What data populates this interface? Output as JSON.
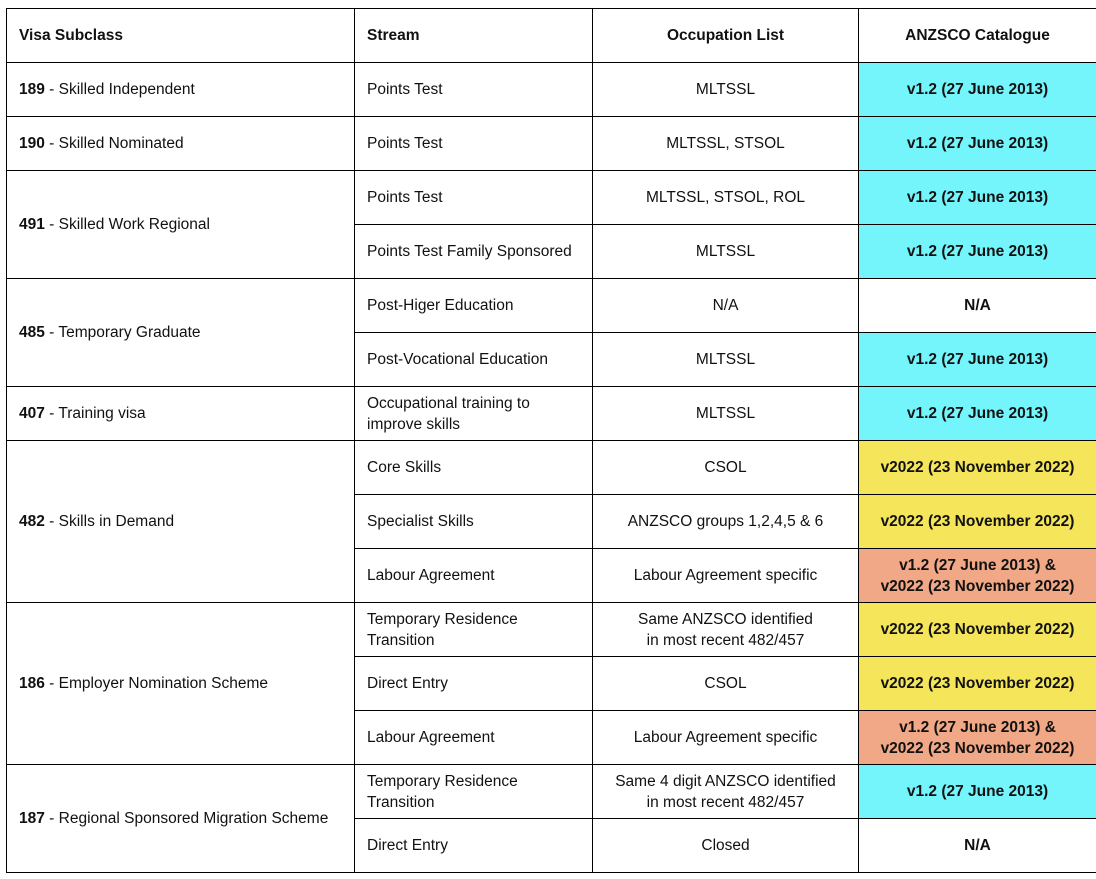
{
  "colors": {
    "cyan": "#74f5fb",
    "yellow": "#f4e55a",
    "orange": "#f1a886",
    "none": "#ffffff"
  },
  "headers": {
    "subclass": "Visa Subclass",
    "stream": "Stream",
    "occupation": "Occupation List",
    "catalogue": "ANZSCO Catalogue"
  },
  "groups": [
    {
      "number": "189",
      "label": " - Skilled Independent",
      "rows": [
        {
          "stream": [
            "Points Test"
          ],
          "occupation": [
            "MLTSSL"
          ],
          "catalogue": [
            "v1.2 (27 June 2013)"
          ],
          "color": "cyan"
        }
      ]
    },
    {
      "number": "190",
      "label": " - Skilled Nominated",
      "rows": [
        {
          "stream": [
            "Points Test"
          ],
          "occupation": [
            "MLTSSL, STSOL"
          ],
          "catalogue": [
            "v1.2 (27 June 2013)"
          ],
          "color": "cyan"
        }
      ]
    },
    {
      "number": "491",
      "label": " - Skilled Work Regional",
      "rows": [
        {
          "stream": [
            "Points Test"
          ],
          "occupation": [
            "MLTSSL, STSOL, ROL"
          ],
          "catalogue": [
            "v1.2 (27 June 2013)"
          ],
          "color": "cyan"
        },
        {
          "stream": [
            "Points Test Family Sponsored"
          ],
          "occupation": [
            "MLTSSL"
          ],
          "catalogue": [
            "v1.2 (27 June 2013)"
          ],
          "color": "cyan"
        }
      ]
    },
    {
      "number": "485",
      "label": " - Temporary Graduate",
      "rows": [
        {
          "stream": [
            "Post-Higer Education"
          ],
          "occupation": [
            "N/A"
          ],
          "catalogue": [
            "N/A"
          ],
          "color": "none"
        },
        {
          "stream": [
            "Post-Vocational Education"
          ],
          "occupation": [
            "MLTSSL"
          ],
          "catalogue": [
            "v1.2 (27 June 2013)"
          ],
          "color": "cyan"
        }
      ]
    },
    {
      "number": "407",
      "label": " - Training visa",
      "rows": [
        {
          "stream": [
            "Occupational training to",
            "improve skills"
          ],
          "occupation": [
            "MLTSSL"
          ],
          "catalogue": [
            "v1.2 (27 June 2013)"
          ],
          "color": "cyan"
        }
      ]
    },
    {
      "number": "482",
      "label": " - Skills in Demand",
      "rows": [
        {
          "stream": [
            "Core Skills"
          ],
          "occupation": [
            "CSOL"
          ],
          "catalogue": [
            "v2022 (23 November 2022)"
          ],
          "color": "yellow"
        },
        {
          "stream": [
            "Specialist Skills"
          ],
          "occupation": [
            "ANZSCO groups 1,2,4,5 & 6"
          ],
          "catalogue": [
            "v2022 (23 November 2022)"
          ],
          "color": "yellow"
        },
        {
          "stream": [
            "Labour Agreement"
          ],
          "occupation": [
            "Labour Agreement specific"
          ],
          "catalogue": [
            "v1.2 (27 June 2013) &",
            "v2022 (23 November 2022)"
          ],
          "color": "orange"
        }
      ]
    },
    {
      "number": "186",
      "label": " - Employer Nomination Scheme",
      "rows": [
        {
          "stream": [
            "Temporary Residence",
            "Transition"
          ],
          "occupation": [
            "Same ANZSCO identified",
            "in most recent 482/457"
          ],
          "catalogue": [
            "v2022 (23 November 2022)"
          ],
          "color": "yellow"
        },
        {
          "stream": [
            "Direct Entry"
          ],
          "occupation": [
            "CSOL"
          ],
          "catalogue": [
            "v2022 (23 November 2022)"
          ],
          "color": "yellow"
        },
        {
          "stream": [
            "Labour Agreement"
          ],
          "occupation": [
            "Labour Agreement specific"
          ],
          "catalogue": [
            "v1.2 (27 June 2013) &",
            "v2022 (23 November 2022)"
          ],
          "color": "orange"
        }
      ]
    },
    {
      "number": "187",
      "label": " - Regional Sponsored Migration Scheme",
      "rows": [
        {
          "stream": [
            "Temporary Residence",
            "Transition"
          ],
          "occupation": [
            "Same 4 digit ANZSCO identified",
            "in most recent 482/457"
          ],
          "catalogue": [
            "v1.2 (27 June 2013)"
          ],
          "color": "cyan"
        },
        {
          "stream": [
            "Direct Entry"
          ],
          "occupation": [
            "Closed"
          ],
          "catalogue": [
            "N/A"
          ],
          "color": "none"
        }
      ]
    }
  ]
}
